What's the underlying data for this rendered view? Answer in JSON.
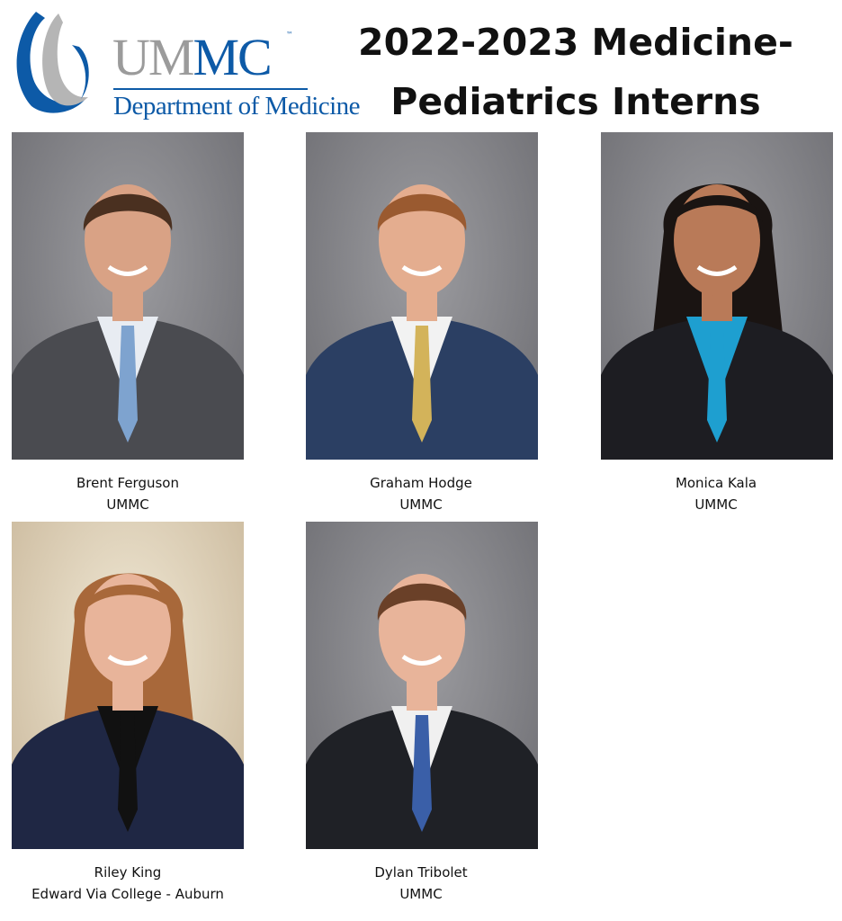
{
  "logo": {
    "wordmark_gray": "UM",
    "wordmark_blue": "MC",
    "trademark": "™",
    "department": "Department of Medicine",
    "colors": {
      "blue": "#0d5aa7",
      "gray": "#9b9b9b"
    }
  },
  "title": {
    "line1": "2022-2023 Medicine-",
    "line2": "Pediatrics Interns"
  },
  "interns": [
    {
      "name": "Brent Ferguson",
      "school": "UMMC",
      "suit": "#4a4b50",
      "shirt": "#e8ecf2",
      "accent": "#7ea3cf",
      "hair": "#4a3020",
      "skin": "#d9a285"
    },
    {
      "name": "Graham Hodge",
      "school": "UMMC",
      "suit": "#2b3f63",
      "shirt": "#f2f2f2",
      "accent": "#d3b35a",
      "hair": "#9a5a30",
      "skin": "#e4ad8f"
    },
    {
      "name": "Monica Kala",
      "school": "UMMC",
      "suit": "#1d1d22",
      "shirt": "#1e9fd0",
      "accent": "#1e9fd0",
      "hair": "#1a1412",
      "skin": "#b97a58"
    },
    {
      "name": "Riley King",
      "school": "Edward Via College - Auburn",
      "suit": "#1f2744",
      "shirt": "#111111",
      "accent": "#111111",
      "hair": "#a8683a",
      "skin": "#e8b49a"
    },
    {
      "name": "Dylan Tribolet",
      "school": "UMMC",
      "suit": "#1f2126",
      "shirt": "#f0f0f0",
      "accent": "#3a5fa8",
      "hair": "#6a4028",
      "skin": "#e8b49a"
    }
  ]
}
